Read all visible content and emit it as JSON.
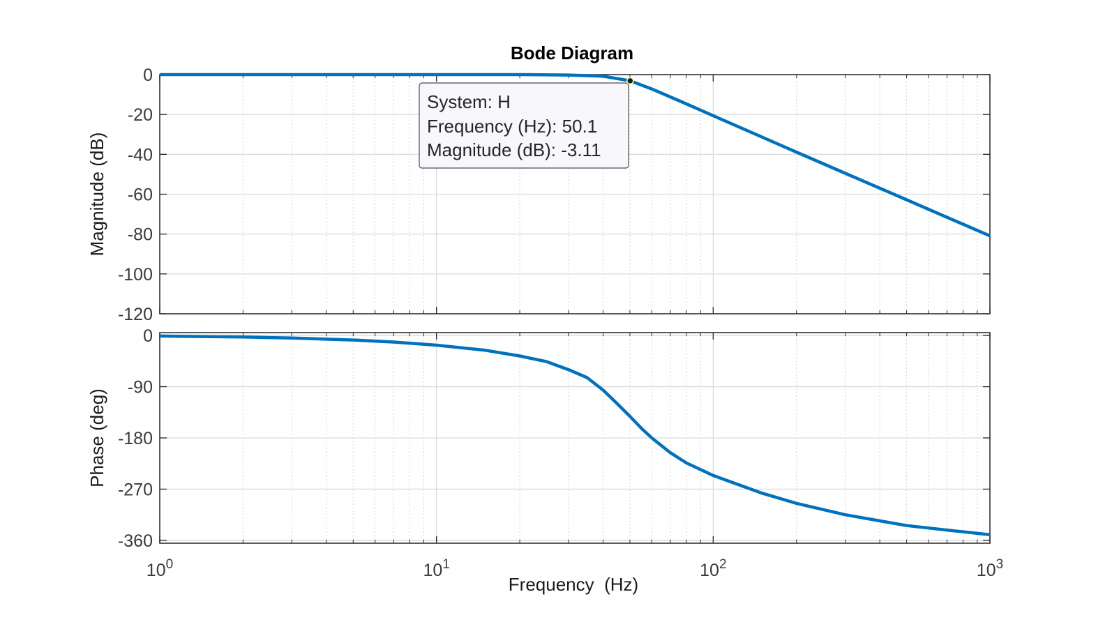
{
  "chart_data": {
    "type": "line",
    "title": "Bode Diagram",
    "xlabel": "Frequency  (Hz)",
    "xscale": "log",
    "xlim": [
      1,
      1000
    ],
    "x_ticks": [
      {
        "value": 1,
        "base": "10",
        "exp": "0"
      },
      {
        "value": 10,
        "base": "10",
        "exp": "1"
      },
      {
        "value": 100,
        "base": "10",
        "exp": "2"
      },
      {
        "value": 1000,
        "base": "10",
        "exp": "3"
      }
    ],
    "grid": true,
    "line_color": "#0072BD",
    "panels": [
      {
        "name": "magnitude",
        "ylabel": "Magnitude (dB)",
        "ylim": [
          -120,
          0
        ],
        "yticks": [
          "0",
          "-20",
          "-40",
          "-60",
          "-80",
          "-100",
          "-120"
        ],
        "ytick_values": [
          0,
          -20,
          -40,
          -60,
          -80,
          -100,
          -120
        ],
        "series": [
          {
            "x": [
              1,
              5,
              10,
              20,
              30,
              40,
              50.1,
              60,
              70,
              80,
              100,
              150,
              200,
              300,
              400,
              500,
              700,
              1000
            ],
            "y": [
              0,
              0,
              0,
              -0.01,
              -0.2,
              -0.8,
              -3.11,
              -7.2,
              -11.2,
              -14.7,
              -20.6,
              -31.3,
              -38.9,
              -49.5,
              -57.0,
              -62.8,
              -71.6,
              -80.9
            ]
          }
        ]
      },
      {
        "name": "phase",
        "ylabel": "Phase (deg)",
        "ylim": [
          -365,
          5
        ],
        "yticks": [
          "0",
          "-90",
          "-180",
          "-270",
          "-360"
        ],
        "ytick_values": [
          0,
          -90,
          -180,
          -270,
          -360
        ],
        "series": [
          {
            "x": [
              1,
              2,
              3,
              5,
              7,
              10,
              15,
              20,
              25,
              30,
              35,
              40,
              45,
              50,
              55,
              60,
              70,
              80,
              100,
              150,
              200,
              300,
              500,
              700,
              1000
            ],
            "y": [
              -1,
              -2.7,
              -4.6,
              -8,
              -11.5,
              -17,
              -26,
              -36,
              -46,
              -60,
              -74,
              -96,
              -120,
              -142,
              -163,
              -180,
              -206,
              -224,
              -246,
              -277,
              -295,
              -315,
              -334,
              -342,
              -350
            ]
          }
        ]
      }
    ],
    "datatip": {
      "x": 50.1,
      "y": -3.11,
      "lines": [
        "System: H",
        "Frequency (Hz): 50.1",
        "Magnitude (dB): -3.11"
      ]
    }
  }
}
